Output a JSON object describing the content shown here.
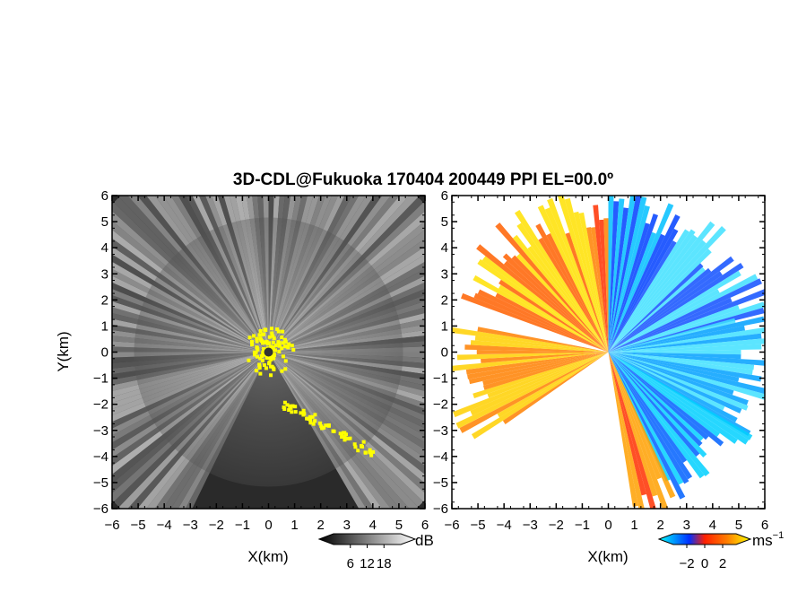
{
  "title": "3D-CDL@Fukuoka 170404 200449 PPI EL=00.0º",
  "chart_data": [
    {
      "type": "heatmap",
      "name": "reflectivity-ppi",
      "xlabel": "X(km)",
      "ylabel": "Y(km)",
      "xlim": [
        -6,
        6
      ],
      "ylim": [
        -6,
        6
      ],
      "x_ticks": [
        "−6",
        "−5",
        "−4",
        "−3",
        "−2",
        "−1",
        "0",
        "1",
        "2",
        "3",
        "4",
        "5",
        "6"
      ],
      "y_ticks": [
        "6",
        "5",
        "4",
        "3",
        "2",
        "1",
        "0",
        "−1",
        "−2",
        "−3",
        "−4",
        "−5",
        "−6"
      ],
      "colorbar": {
        "unit": "dB",
        "ticks": [
          "6",
          "12",
          "18"
        ],
        "tick_values": [
          6,
          12,
          18
        ],
        "range": [
          0,
          24
        ],
        "colors": [
          "#000000",
          "#ffffff"
        ]
      },
      "overlay_color": "#ffff00"
    },
    {
      "type": "heatmap",
      "name": "velocity-ppi",
      "xlabel": "X(km)",
      "ylabel": "",
      "xlim": [
        -6,
        6
      ],
      "ylim": [
        -6,
        6
      ],
      "x_ticks": [
        "−6",
        "−5",
        "−4",
        "−3",
        "−2",
        "−1",
        "0",
        "1",
        "2",
        "3",
        "4",
        "5",
        "6"
      ],
      "y_ticks": [
        "6",
        "5",
        "4",
        "3",
        "2",
        "1",
        "0",
        "−1",
        "−2",
        "−3",
        "−4",
        "−5",
        "−6"
      ],
      "colorbar": {
        "unit": "ms",
        "unit_exp": "−1",
        "ticks": [
          "−2",
          "0",
          "2"
        ],
        "tick_values": [
          -2,
          0,
          2
        ],
        "range": [
          -3.5,
          3.5
        ],
        "colors": [
          "#00ffff",
          "#0000ff",
          "#ff0000",
          "#ffff00"
        ]
      }
    }
  ]
}
